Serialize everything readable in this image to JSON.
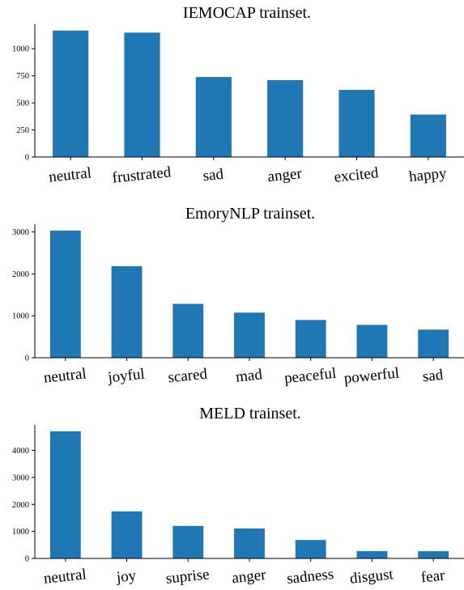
{
  "style": {
    "bar_color": "#1f77b4",
    "axis_color": "#000000",
    "background": "#ffffff"
  },
  "chart_data": [
    {
      "type": "bar",
      "title": "IEMOCAP trainset.",
      "xlabel": "",
      "ylabel": "",
      "categories": [
        "neutral",
        "frustrated",
        "sad",
        "anger",
        "excited",
        "happy"
      ],
      "values": [
        1168,
        1149,
        739,
        710,
        620,
        392
      ],
      "yticks": [
        0,
        250,
        500,
        750,
        1000
      ],
      "ylim": [
        0,
        1226
      ],
      "grid": false,
      "legend": "none"
    },
    {
      "type": "bar",
      "title": "EmoryNLP trainset.",
      "xlabel": "",
      "ylabel": "",
      "categories": [
        "neutral",
        "joyful",
        "scared",
        "mad",
        "peaceful",
        "powerful",
        "sad"
      ],
      "values": [
        3034,
        2184,
        1285,
        1076,
        900,
        784,
        671
      ],
      "yticks": [
        0,
        1000,
        2000,
        3000
      ],
      "ylim": [
        0,
        3186
      ],
      "grid": false,
      "legend": "none"
    },
    {
      "type": "bar",
      "title": "MELD trainset.",
      "xlabel": "",
      "ylabel": "",
      "categories": [
        "neutral",
        "joy",
        "suprise",
        "anger",
        "sadness",
        "disgust",
        "fear"
      ],
      "values": [
        4710,
        1743,
        1205,
        1109,
        683,
        271,
        268
      ],
      "yticks": [
        0,
        1000,
        2000,
        3000,
        4000
      ],
      "ylim": [
        0,
        4946
      ],
      "grid": false,
      "legend": "none"
    }
  ]
}
